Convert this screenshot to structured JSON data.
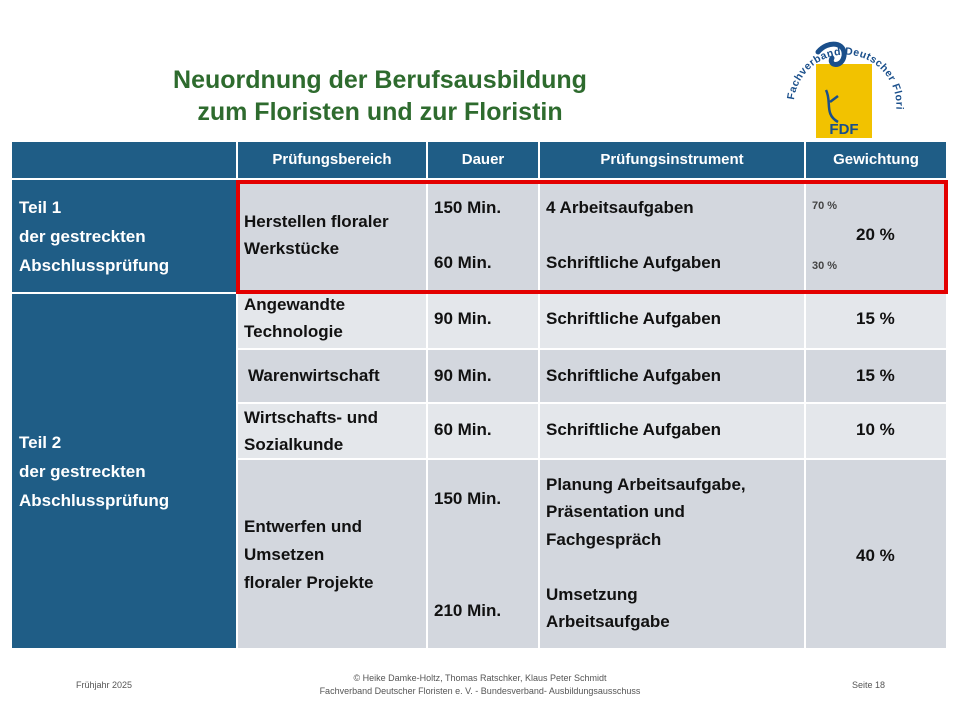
{
  "slide": {
    "title_line1": "Neuordnung der Berufsausbildung",
    "title_line2": "zum Floristen und zur Floristin"
  },
  "logo": {
    "arc_text": "Fachverband Deutscher Floristen e.V.",
    "badge": "FDF",
    "colors": {
      "blue": "#1a4f8b",
      "yellow": "#f2c200"
    }
  },
  "table": {
    "headers": [
      "",
      "Prüfungsbereich",
      "Dauer",
      "Prüfungsinstrument",
      "Gewichtung"
    ],
    "teil1": {
      "line1": "Teil 1",
      "line2": "der gestreckten",
      "line3": "Abschlussprüfung"
    },
    "teil2": {
      "line1": "Teil 2",
      "line2": "der gestreckten",
      "line3": "Abschlussprüfung"
    },
    "rows": [
      {
        "bereich1": "Herstellen floraler",
        "bereich2": "Werkstücke",
        "dauer1": "150 Min.",
        "dauer2": "60 Min.",
        "instr1": "4 Arbeitsaufgaben",
        "instr2": "Schriftliche Aufgaben",
        "gew": "20 %",
        "sub1": "70 %",
        "sub2": "30 %"
      },
      {
        "bereich1": "Angewandte",
        "bereich2": "Technologie",
        "dauer": "90 Min.",
        "instr": "Schriftliche Aufgaben",
        "gew": "15 %"
      },
      {
        "bereich": "Warenwirtschaft",
        "dauer": "90 Min.",
        "instr": "Schriftliche Aufgaben",
        "gew": "15 %"
      },
      {
        "bereich1": "Wirtschafts- und",
        "bereich2": "Sozialkunde",
        "dauer": "60 Min.",
        "instr": "Schriftliche Aufgaben",
        "gew": "10 %"
      },
      {
        "bereich1": "Entwerfen und",
        "bereich2": "Umsetzen",
        "bereich3": "floraler Projekte",
        "dauer1": "150 Min.",
        "dauer2": "210 Min.",
        "instr1": "Planung Arbeitsaufgabe,",
        "instr2": "Präsentation und",
        "instr3": "Fachgespräch",
        "instr4": "Umsetzung",
        "instr5": "Arbeitsaufgabe",
        "gew": "40 %"
      }
    ]
  },
  "footer": {
    "left": "Frühjahr 2025",
    "center1": "© Heike Damke-Holtz, Thomas Ratschker, Klaus Peter Schmidt",
    "center2": "Fachverband Deutscher Floristen  e. V. - Bundesverband- Ausbildungsausschuss",
    "right": "Seite 18"
  },
  "colors": {
    "header": "#1f5d86",
    "row_light": "#d3d7de",
    "row_lighter": "#e4e7eb",
    "highlight": "#e30000",
    "title": "#2e6b2e"
  }
}
